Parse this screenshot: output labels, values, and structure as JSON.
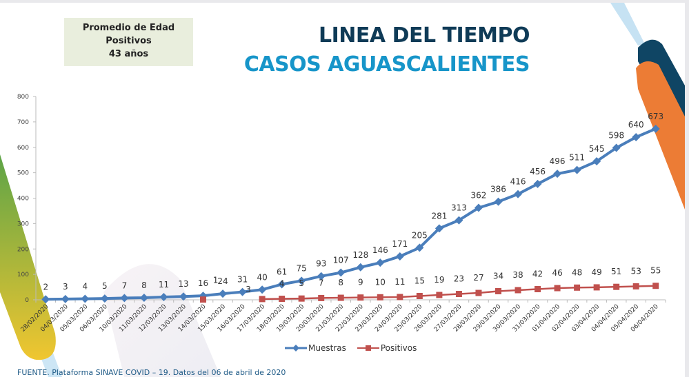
{
  "infobox": {
    "line1": "Promedio de Edad",
    "line2": "Positivos",
    "line3": "43 años"
  },
  "title": {
    "line1": "LINEA DEL TIEMPO",
    "line2": "CASOS AGUASCALIENTES"
  },
  "footer": "FUENTE. Plataforma SINAVE COVID – 19. Datos del 06 de abril de 2020",
  "colors": {
    "muestras": "#4a7ebb",
    "positivos": "#c0504d",
    "title_dark": "#0f3b57",
    "title_light": "#1795c9"
  },
  "chart_data": {
    "type": "line",
    "title": "LINEA DEL TIEMPO CASOS AGUASCALIENTES",
    "xlabel": "",
    "ylabel": "",
    "ylim": [
      0,
      800
    ],
    "yticks": [
      0,
      100,
      200,
      300,
      400,
      500,
      600,
      700,
      800
    ],
    "grid": false,
    "legend_position": "bottom",
    "categories": [
      "28/02/2020",
      "04/03/2020",
      "05/03/2020",
      "06/03/2020",
      "10/03/2020",
      "11/03/2020",
      "12/03/2020",
      "13/03/2020",
      "14/03/2020",
      "15/03/2020",
      "16/03/2020",
      "17/03/2020",
      "18/03/2020",
      "19/03/2020",
      "20/03/2020",
      "21/03/2020",
      "22/03/2020",
      "23/03/2020",
      "24/03/2020",
      "25/03/2020",
      "26/03/2020",
      "27/03/2020",
      "28/03/2020",
      "29/03/2020",
      "30/03/2020",
      "31/03/2020",
      "01/04/2020",
      "02/04/2020",
      "03/04/2020",
      "04/04/2020",
      "05/04/2020",
      "06/04/2020"
    ],
    "series": [
      {
        "name": "Muestras",
        "marker": "diamond",
        "values": [
          2,
          3,
          4,
          5,
          7,
          8,
          11,
          13,
          16,
          24,
          31,
          40,
          61,
          75,
          93,
          107,
          128,
          146,
          171,
          205,
          281,
          313,
          362,
          386,
          416,
          456,
          496,
          511,
          545,
          598,
          640,
          673
        ]
      },
      {
        "name": "Positivos",
        "marker": "square",
        "values": [
          null,
          null,
          null,
          null,
          null,
          null,
          null,
          null,
          1,
          null,
          null,
          3,
          4,
          5,
          7,
          8,
          9,
          10,
          11,
          15,
          19,
          23,
          27,
          34,
          38,
          42,
          46,
          48,
          49,
          51,
          53,
          55
        ]
      }
    ]
  }
}
